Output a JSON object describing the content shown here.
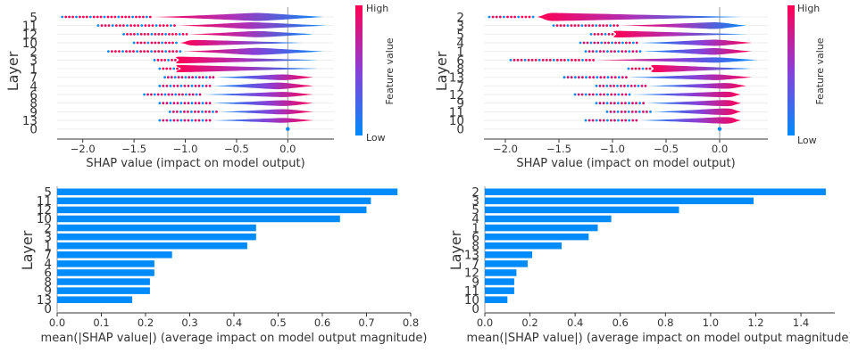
{
  "colors": {
    "high": "#ff0052",
    "low": "#008bfb",
    "bar": "#008bfb",
    "axis": "#333333",
    "grid": "#cccccc"
  },
  "colorbar": {
    "high_label": "High",
    "low_label": "Low",
    "title": "Feature value"
  },
  "chart_data": [
    {
      "type": "violin",
      "ylabel": "Layer",
      "xlabel": "SHAP value (impact on model output)",
      "xlim": [
        -2.25,
        0.45
      ],
      "xticks": [
        -2.0,
        -1.5,
        -1.0,
        -0.5,
        0.0
      ],
      "tick_labels": [
        "−2.0",
        "−1.5",
        "−1.0",
        "−0.5",
        "0.0"
      ],
      "features": [
        {
          "name": "5",
          "min": -2.2,
          "max": 0.35,
          "peak": -0.3,
          "width": 0.85,
          "high_side": "left"
        },
        {
          "name": "11",
          "min": -1.85,
          "max": 0.38,
          "peak": -0.35,
          "width": 0.7,
          "high_side": "left"
        },
        {
          "name": "12",
          "min": -1.6,
          "max": 0.25,
          "peak": -0.3,
          "width": 0.65,
          "high_side": "left"
        },
        {
          "name": "10",
          "min": -1.5,
          "max": 0.15,
          "peak": -0.9,
          "width": 0.6,
          "high_side": "left"
        },
        {
          "name": "2",
          "min": -1.75,
          "max": 0.35,
          "peak": -0.3,
          "width": 0.75,
          "high_side": "mid"
        },
        {
          "name": "3",
          "min": -1.3,
          "max": 0.3,
          "peak": -1.05,
          "width": 0.7,
          "high_side": "left"
        },
        {
          "name": "1",
          "min": -1.25,
          "max": 0.3,
          "peak": -1.05,
          "width": 0.75,
          "high_side": "left"
        },
        {
          "name": "7",
          "min": -1.2,
          "max": 0.25,
          "peak": -0.05,
          "width": 0.6,
          "high_side": "right"
        },
        {
          "name": "4",
          "min": -1.25,
          "max": 0.25,
          "peak": -0.1,
          "width": 0.7,
          "high_side": "right"
        },
        {
          "name": "6",
          "min": -1.4,
          "max": 0.25,
          "peak": -0.05,
          "width": 0.55,
          "high_side": "right"
        },
        {
          "name": "8",
          "min": -1.25,
          "max": 0.25,
          "peak": -0.05,
          "width": 0.6,
          "high_side": "right"
        },
        {
          "name": "9",
          "min": -1.15,
          "max": 0.25,
          "peak": -0.05,
          "width": 0.55,
          "high_side": "right"
        },
        {
          "name": "13",
          "min": -1.25,
          "max": 0.25,
          "peak": -0.05,
          "width": 0.5,
          "high_side": "right"
        },
        {
          "name": "0",
          "min": 0.0,
          "max": 0.0,
          "peak": 0.0,
          "width": 0.05,
          "high_side": "mid"
        }
      ]
    },
    {
      "type": "violin",
      "ylabel": "Layer",
      "xlabel": "SHAP value (impact on model output)",
      "xlim": [
        -2.2,
        0.45
      ],
      "xticks": [
        -2.0,
        -1.5,
        -1.0,
        -0.5,
        0.0
      ],
      "tick_labels": [
        "−2.0",
        "−1.5",
        "−1.0",
        "−0.5",
        "0.0"
      ],
      "features": [
        {
          "name": "2",
          "min": -2.15,
          "max": 0.2,
          "peak": -1.55,
          "width": 0.85,
          "high_side": "left"
        },
        {
          "name": "3",
          "min": -1.55,
          "max": 0.25,
          "peak": -0.05,
          "width": 0.7,
          "high_side": "left"
        },
        {
          "name": "5",
          "min": -1.2,
          "max": 0.25,
          "peak": -0.95,
          "width": 0.7,
          "high_side": "left"
        },
        {
          "name": "4",
          "min": -1.3,
          "max": 0.3,
          "peak": -0.05,
          "width": 0.65,
          "high_side": "right"
        },
        {
          "name": "1",
          "min": -1.25,
          "max": 0.3,
          "peak": -0.05,
          "width": 0.7,
          "high_side": "right"
        },
        {
          "name": "6",
          "min": -1.95,
          "max": 0.35,
          "peak": -0.05,
          "width": 0.55,
          "high_side": "mid"
        },
        {
          "name": "8",
          "min": -0.85,
          "max": 0.3,
          "peak": -0.6,
          "width": 0.75,
          "high_side": "left"
        },
        {
          "name": "13",
          "min": -1.45,
          "max": 0.3,
          "peak": -0.05,
          "width": 0.6,
          "high_side": "right"
        },
        {
          "name": "7",
          "min": -1.15,
          "max": 0.25,
          "peak": 0.05,
          "width": 0.6,
          "high_side": "right"
        },
        {
          "name": "12",
          "min": -1.35,
          "max": 0.2,
          "peak": 0.05,
          "width": 0.6,
          "high_side": "right"
        },
        {
          "name": "9",
          "min": -1.15,
          "max": 0.2,
          "peak": 0.05,
          "width": 0.65,
          "high_side": "right"
        },
        {
          "name": "11",
          "min": -1.05,
          "max": 0.2,
          "peak": 0.05,
          "width": 0.7,
          "high_side": "right"
        },
        {
          "name": "10",
          "min": -1.25,
          "max": 0.2,
          "peak": 0.05,
          "width": 0.7,
          "high_side": "right"
        },
        {
          "name": "0",
          "min": 0.0,
          "max": 0.0,
          "peak": 0.0,
          "width": 0.05,
          "high_side": "mid"
        }
      ]
    },
    {
      "type": "bar",
      "orientation": "horizontal",
      "ylabel": "Layer",
      "xlabel": "mean(|SHAP value|) (average impact on model output magnitude)",
      "xlim": [
        0,
        0.8
      ],
      "xticks": [
        0.0,
        0.1,
        0.2,
        0.3,
        0.4,
        0.5,
        0.6,
        0.7,
        0.8
      ],
      "tick_labels": [
        "0.0",
        "0.1",
        "0.2",
        "0.3",
        "0.4",
        "0.5",
        "0.6",
        "0.7",
        "0.8"
      ],
      "categories": [
        "5",
        "11",
        "12",
        "10",
        "2",
        "3",
        "1",
        "7",
        "4",
        "6",
        "8",
        "9",
        "13",
        "0"
      ],
      "values": [
        0.77,
        0.71,
        0.7,
        0.64,
        0.45,
        0.45,
        0.43,
        0.26,
        0.22,
        0.22,
        0.21,
        0.21,
        0.17,
        0.0
      ]
    },
    {
      "type": "bar",
      "orientation": "horizontal",
      "ylabel": "Layer",
      "xlabel": "mean(|SHAP value|) (average impact on model output magnitude)",
      "xlim": [
        0,
        1.55
      ],
      "xticks": [
        0.0,
        0.2,
        0.4,
        0.6,
        0.8,
        1.0,
        1.2,
        1.4
      ],
      "tick_labels": [
        "0.0",
        "0.2",
        "0.4",
        "0.6",
        "0.8",
        "1.0",
        "1.2",
        "1.4"
      ],
      "categories": [
        "2",
        "3",
        "5",
        "4",
        "1",
        "6",
        "8",
        "13",
        "7",
        "12",
        "9",
        "11",
        "10",
        "0"
      ],
      "values": [
        1.51,
        1.19,
        0.86,
        0.56,
        0.5,
        0.46,
        0.34,
        0.21,
        0.19,
        0.14,
        0.13,
        0.13,
        0.1,
        0.0
      ]
    }
  ]
}
